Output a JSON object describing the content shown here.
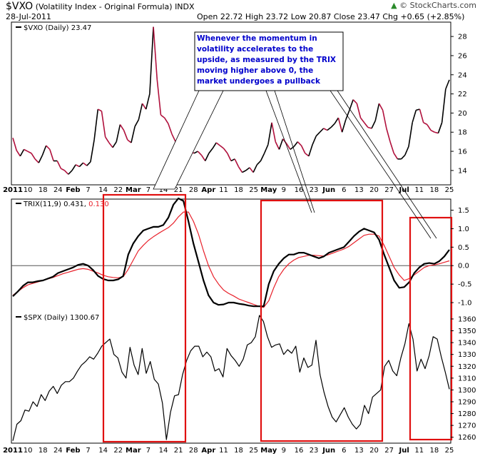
{
  "header": {
    "symbol": "$VXO",
    "name": "(Volatility Index - Original Formula)",
    "exchange": "INDX",
    "date": "28-Jul-2011",
    "open_label": "Open",
    "open": "22.72",
    "high_label": "High",
    "high": "23.72",
    "low_label": "Low",
    "low": "20.87",
    "close_label": "Close",
    "close": "23.47",
    "chg_label": "Chg",
    "chg": "+0.65 (+2.85%)",
    "arrow": "▲",
    "brand": "© StockCharts.com"
  },
  "annotation": "Whenever the momentum in volatility accelerates to the upside, as measured by the TRIX moving higher above 0, the market undergoes a pullback",
  "colors": {
    "down": "#b0103c",
    "up": "#000000",
    "signal": "#e8202a",
    "box": "#e01010",
    "annotation_text": "#0000cc"
  },
  "chart_data": [
    {
      "type": "line",
      "title": "$VXO (Daily) 23.47",
      "ylim": [
        12.5,
        29.5
      ],
      "yticks": [
        14,
        16,
        18,
        20,
        22,
        24,
        26,
        28
      ],
      "series": [
        {
          "name": "$VXO (Daily)",
          "values": [
            17.4,
            16.1,
            15.5,
            16.2,
            16.0,
            15.8,
            15.2,
            14.8,
            15.6,
            16.6,
            16.2,
            15.0,
            15.0,
            14.2,
            14.0,
            13.6,
            14.0,
            14.6,
            14.4,
            14.8,
            14.5,
            14.9,
            17.2,
            20.4,
            20.2,
            17.5,
            16.9,
            16.4,
            17.0,
            18.8,
            18.2,
            17.2,
            16.9,
            18.6,
            19.3,
            21.0,
            20.4,
            22.0,
            29.0,
            23.5,
            19.8,
            19.5,
            18.9,
            17.8,
            17.0,
            16.8,
            17.1,
            16.2,
            16.0,
            15.8,
            16.0,
            15.6,
            15.0,
            15.8,
            16.3,
            16.9,
            16.6,
            16.3,
            15.8,
            15.0,
            15.2,
            14.4,
            13.8,
            14.0,
            14.3,
            13.8,
            14.6,
            15.0,
            15.8,
            16.7,
            19.0,
            17.0,
            16.2,
            17.3,
            16.8,
            16.2,
            16.5,
            17.0,
            16.6,
            15.8,
            15.5,
            16.7,
            17.6,
            18.0,
            18.4,
            18.2,
            18.5,
            18.9,
            19.5,
            18.0,
            19.3,
            20.3,
            21.4,
            21.0,
            19.5,
            19.0,
            18.5,
            18.4,
            19.2,
            21.0,
            20.3,
            18.4,
            17.0,
            15.8,
            15.2,
            15.2,
            15.6,
            16.5,
            19.0,
            20.3,
            20.4,
            19.0,
            18.8,
            18.2,
            18.0,
            17.9,
            19.0,
            22.5,
            23.47
          ]
        }
      ]
    },
    {
      "type": "line",
      "title": "TRIX(11,9) 0.431, 0.130",
      "ylim": [
        -1.25,
        1.8
      ],
      "yticks": [
        -1.0,
        -0.5,
        0.0,
        0.5,
        1.0,
        1.5
      ],
      "series": [
        {
          "name": "TRIX(11,9)",
          "last": "0.431",
          "values": [
            -0.83,
            -0.7,
            -0.55,
            -0.45,
            -0.45,
            -0.42,
            -0.4,
            -0.35,
            -0.3,
            -0.2,
            -0.15,
            -0.1,
            -0.05,
            0.02,
            0.05,
            0.0,
            -0.12,
            -0.28,
            -0.36,
            -0.4,
            -0.4,
            -0.37,
            -0.28,
            0.3,
            0.6,
            0.8,
            0.95,
            1.0,
            1.05,
            1.05,
            1.1,
            1.3,
            1.65,
            1.82,
            1.75,
            1.2,
            0.6,
            0.1,
            -0.4,
            -0.8,
            -1.0,
            -1.06,
            -1.05,
            -1.0,
            -1.0,
            -1.03,
            -1.05,
            -1.08,
            -1.1,
            -1.1,
            -1.1,
            -0.5,
            -0.15,
            0.05,
            0.2,
            0.3,
            0.3,
            0.35,
            0.35,
            0.3,
            0.25,
            0.2,
            0.25,
            0.35,
            0.4,
            0.45,
            0.5,
            0.65,
            0.8,
            0.92,
            1.0,
            0.95,
            0.9,
            0.7,
            0.3,
            -0.05,
            -0.4,
            -0.6,
            -0.58,
            -0.45,
            -0.2,
            -0.05,
            0.05,
            0.07,
            0.05,
            0.12,
            0.25,
            0.43
          ]
        },
        {
          "name": "Signal",
          "last": "0.130",
          "values": [
            -0.8,
            -0.7,
            -0.6,
            -0.52,
            -0.48,
            -0.44,
            -0.4,
            -0.36,
            -0.32,
            -0.27,
            -0.22,
            -0.18,
            -0.14,
            -0.1,
            -0.08,
            -0.1,
            -0.15,
            -0.2,
            -0.26,
            -0.3,
            -0.32,
            -0.33,
            -0.3,
            -0.1,
            0.15,
            0.4,
            0.55,
            0.68,
            0.78,
            0.87,
            0.95,
            1.03,
            1.15,
            1.32,
            1.45,
            1.45,
            1.2,
            0.85,
            0.4,
            0.0,
            -0.3,
            -0.5,
            -0.66,
            -0.75,
            -0.82,
            -0.9,
            -0.95,
            -1.0,
            -1.05,
            -1.1,
            -1.13,
            -0.95,
            -0.6,
            -0.3,
            -0.1,
            0.05,
            0.15,
            0.22,
            0.25,
            0.28,
            0.28,
            0.27,
            0.26,
            0.3,
            0.35,
            0.4,
            0.45,
            0.52,
            0.62,
            0.72,
            0.82,
            0.85,
            0.85,
            0.8,
            0.55,
            0.25,
            -0.05,
            -0.25,
            -0.4,
            -0.35,
            -0.25,
            -0.15,
            -0.05,
            0.0,
            0.02,
            0.05,
            0.09,
            0.13
          ]
        }
      ]
    },
    {
      "type": "line",
      "title": "$SPX (Daily) 1300.67",
      "ylim": [
        1255,
        1366
      ],
      "yticks": [
        1260,
        1270,
        1280,
        1290,
        1300,
        1310,
        1320,
        1330,
        1340,
        1350,
        1360
      ],
      "series": [
        {
          "name": "$SPX (Daily)",
          "values": [
            1257,
            1271,
            1274,
            1283,
            1282,
            1290,
            1286,
            1296,
            1291,
            1299,
            1303,
            1297,
            1304,
            1307,
            1307,
            1310,
            1316,
            1321,
            1324,
            1328,
            1326,
            1331,
            1337,
            1340,
            1343,
            1330,
            1327,
            1315,
            1310,
            1336,
            1321,
            1313,
            1335,
            1314,
            1324,
            1309,
            1305,
            1289,
            1258,
            1281,
            1295,
            1296,
            1313,
            1325,
            1333,
            1337,
            1337,
            1328,
            1332,
            1328,
            1316,
            1318,
            1311,
            1335,
            1329,
            1325,
            1320,
            1326,
            1338,
            1340,
            1345,
            1363,
            1358,
            1345,
            1336,
            1338,
            1339,
            1330,
            1334,
            1331,
            1337,
            1315,
            1327,
            1319,
            1321,
            1342,
            1313,
            1298,
            1286,
            1277,
            1273,
            1279,
            1285,
            1277,
            1271,
            1267,
            1271,
            1287,
            1280,
            1294,
            1297,
            1300,
            1320,
            1325,
            1316,
            1312,
            1327,
            1339,
            1356,
            1343,
            1316,
            1326,
            1318,
            1329,
            1345,
            1343,
            1328,
            1315,
            1300.67
          ]
        }
      ]
    }
  ],
  "x_axis": {
    "labels": [
      "2011",
      "10",
      "18",
      "24",
      "Feb",
      "7",
      "14",
      "22",
      "Mar",
      "7",
      "14",
      "21",
      "28",
      "Apr",
      "11",
      "18",
      "25",
      "May",
      "9",
      "16",
      "23",
      "Jun",
      "6",
      "13",
      "20",
      "27",
      "Jul",
      "11",
      "18",
      "25"
    ],
    "bold": [
      "2011",
      "Feb",
      "Mar",
      "Apr",
      "May",
      "Jun",
      "Jul"
    ]
  }
}
